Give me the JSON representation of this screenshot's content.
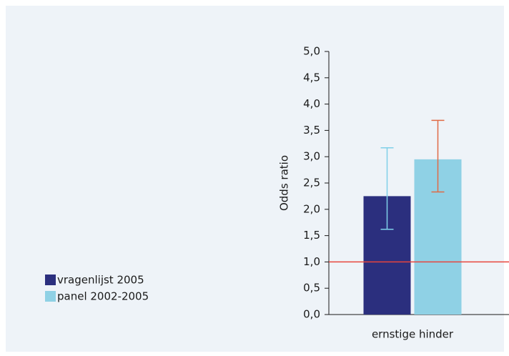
{
  "chart_data": {
    "type": "bar",
    "y_label": "Odds ratio",
    "categories": [
      "ernstige hinder"
    ],
    "series": [
      {
        "name": "vragenlijst 2005",
        "color": "#2b2f7e",
        "error_color": "#7fd0e8",
        "values": [
          2.25
        ],
        "ci_low": [
          1.62
        ],
        "ci_high": [
          3.17
        ]
      },
      {
        "name": "panel 2002-2005",
        "color": "#8fd1e5",
        "error_color": "#e06a45",
        "values": [
          2.95
        ],
        "ci_low": [
          2.33
        ],
        "ci_high": [
          3.69
        ]
      }
    ],
    "reference_line": 1,
    "reference_color": "#e8453c",
    "ylim": [
      0,
      5
    ],
    "yticks": [
      {
        "value": 0,
        "label": "0,0"
      },
      {
        "value": 0.5,
        "label": "0,5"
      },
      {
        "value": 1,
        "label": "1,0"
      },
      {
        "value": 1.5,
        "label": "1,5"
      },
      {
        "value": 2,
        "label": "2,0"
      },
      {
        "value": 2.5,
        "label": "2,5"
      },
      {
        "value": 3,
        "label": "3,0"
      },
      {
        "value": 3.5,
        "label": "3,5"
      },
      {
        "value": 4,
        "label": "4,0"
      },
      {
        "value": 4.5,
        "label": "4,5"
      },
      {
        "value": 5,
        "label": "5,0"
      }
    ]
  }
}
